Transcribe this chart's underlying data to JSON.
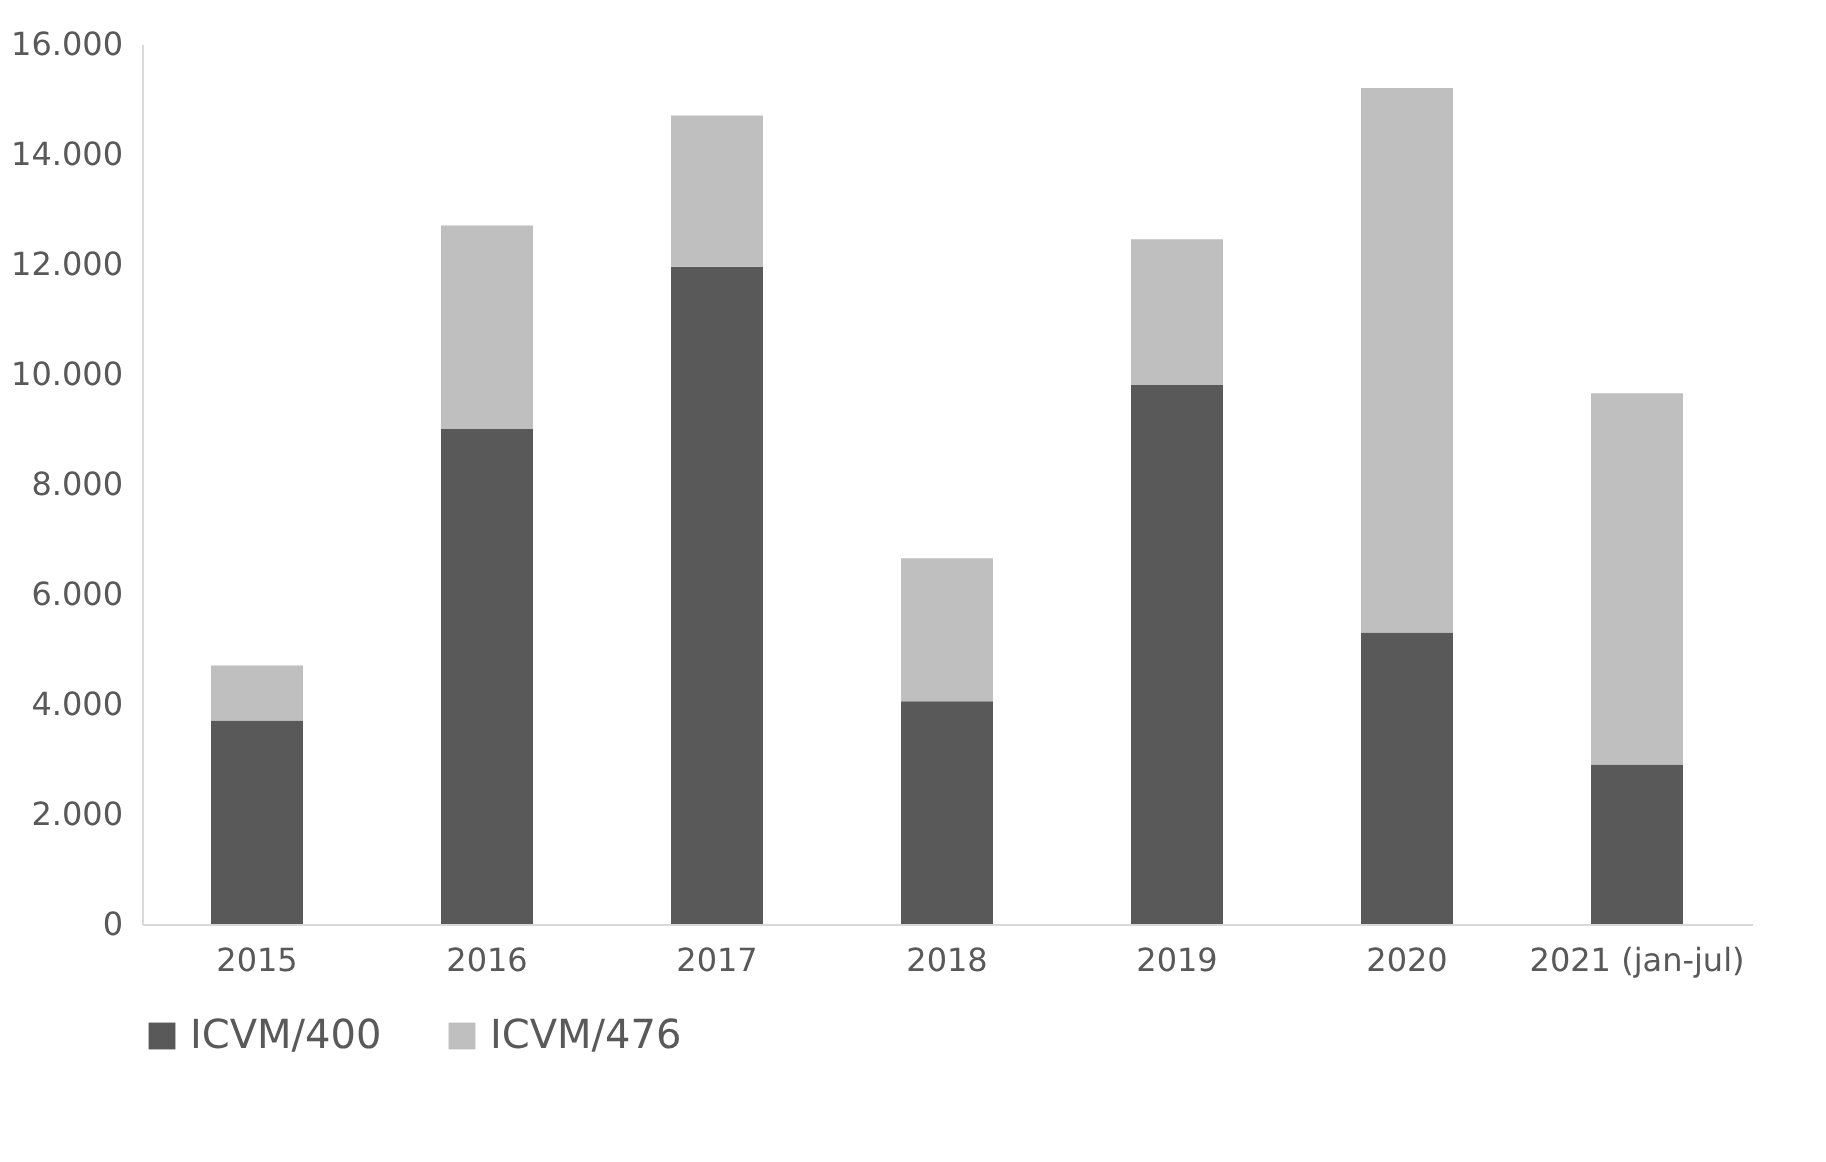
{
  "chart_data": {
    "type": "bar",
    "stacked": true,
    "categories": [
      "2015",
      "2016",
      "2017",
      "2018",
      "2019",
      "2020",
      "2021 (jan-jul)"
    ],
    "series": [
      {
        "name": "ICVM/400",
        "color": "#595959",
        "values": [
          3700,
          9000,
          11950,
          4050,
          9800,
          5300,
          2900
        ]
      },
      {
        "name": "ICVM/476",
        "color": "#bfbfbf",
        "values": [
          1000,
          3700,
          2750,
          2600,
          2650,
          9900,
          6750
        ]
      }
    ],
    "ylim": [
      0,
      16000
    ],
    "yticks": [
      0,
      {
        "value": 2000,
        "label": "2.000"
      },
      {
        "value": 4000,
        "label": "4.000"
      },
      {
        "value": 6000,
        "label": "6.000"
      },
      {
        "value": 8000,
        "label": "8.000"
      },
      {
        "value": 10000,
        "label": "10.000"
      },
      {
        "value": 12000,
        "label": "12.000"
      },
      {
        "value": 14000,
        "label": "14.000"
      },
      {
        "value": 16000,
        "label": "16.000"
      }
    ],
    "grid": false,
    "legend": "bottom"
  }
}
